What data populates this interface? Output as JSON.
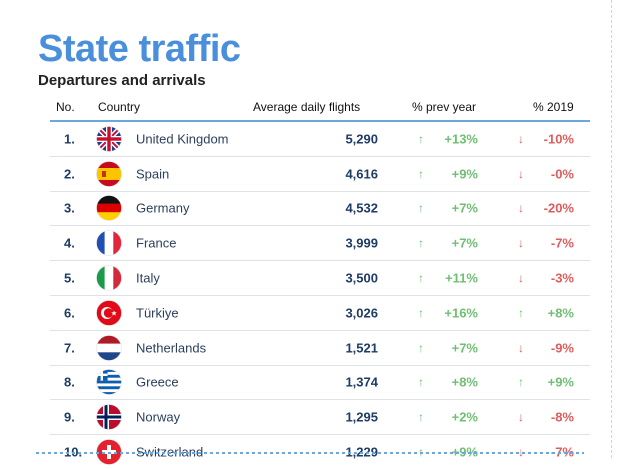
{
  "title": "State traffic",
  "subtitle": "Departures and arrivals",
  "headers": {
    "no": "No.",
    "country": "Country",
    "flights": "Average daily flights",
    "prev": "% prev year",
    "y2019": "% 2019"
  },
  "rows": [
    {
      "no": "1.",
      "country": "United Kingdom",
      "flag_icon": "uk-flag-icon",
      "flights": "5,290",
      "prev": "+13%",
      "prev_dir": "up",
      "y2019": "-10%",
      "y2019_dir": "down"
    },
    {
      "no": "2.",
      "country": "Spain",
      "flag_icon": "spain-flag-icon",
      "flights": "4,616",
      "prev": "+9%",
      "prev_dir": "up",
      "y2019": "-0%",
      "y2019_dir": "down"
    },
    {
      "no": "3.",
      "country": "Germany",
      "flag_icon": "germany-flag-icon",
      "flights": "4,532",
      "prev": "+7%",
      "prev_dir": "up",
      "y2019": "-20%",
      "y2019_dir": "down"
    },
    {
      "no": "4.",
      "country": "France",
      "flag_icon": "france-flag-icon",
      "flights": "3,999",
      "prev": "+7%",
      "prev_dir": "up",
      "y2019": "-7%",
      "y2019_dir": "down"
    },
    {
      "no": "5.",
      "country": "Italy",
      "flag_icon": "italy-flag-icon",
      "flights": "3,500",
      "prev": "+11%",
      "prev_dir": "up",
      "y2019": "-3%",
      "y2019_dir": "down"
    },
    {
      "no": "6.",
      "country": "Türkiye",
      "flag_icon": "turkiye-flag-icon",
      "flights": "3,026",
      "prev": "+16%",
      "prev_dir": "up",
      "y2019": "+8%",
      "y2019_dir": "up"
    },
    {
      "no": "7.",
      "country": "Netherlands",
      "flag_icon": "netherlands-flag-icon",
      "flights": "1,521",
      "prev": "+7%",
      "prev_dir": "up",
      "y2019": "-9%",
      "y2019_dir": "down"
    },
    {
      "no": "8.",
      "country": "Greece",
      "flag_icon": "greece-flag-icon",
      "flights": "1,374",
      "prev": "+8%",
      "prev_dir": "up",
      "y2019": "+9%",
      "y2019_dir": "up"
    },
    {
      "no": "9.",
      "country": "Norway",
      "flag_icon": "norway-flag-icon",
      "flights": "1,295",
      "prev": "+2%",
      "prev_dir": "up",
      "y2019": "-8%",
      "y2019_dir": "down"
    },
    {
      "no": "10.",
      "country": "Switzerland",
      "flag_icon": "switzerland-flag-icon",
      "flights": "1,229",
      "prev": "+9%",
      "prev_dir": "up",
      "y2019": "-7%",
      "y2019_dir": "down"
    }
  ],
  "colors": {
    "title": "#4a8fdc",
    "up": "#6fbf73",
    "down": "#e05c5c",
    "header_rule": "#6aa7e0"
  }
}
